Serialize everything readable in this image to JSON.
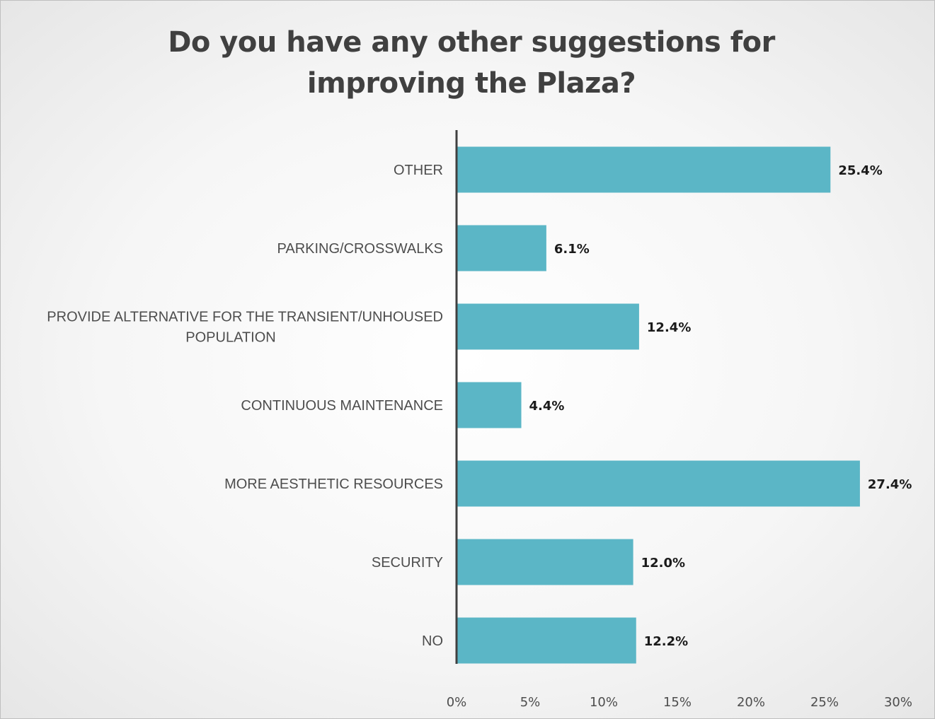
{
  "chart_data": {
    "type": "bar",
    "orientation": "horizontal",
    "title": "Do you have any other suggestions for improving the Plaza?",
    "categories": [
      "OTHER",
      "PARKING/CROSSWALKS",
      "PROVIDE ALTERNATIVE FOR THE TRANSIENT/UNHOUSED POPULATION",
      "CONTINUOUS MAINTENANCE",
      "MORE AESTHETIC RESOURCES",
      "SECURITY",
      "NO"
    ],
    "values": [
      25.4,
      6.1,
      12.4,
      4.4,
      27.4,
      12.0,
      12.2
    ],
    "data_labels": [
      "25.4%",
      "6.1%",
      "12.4%",
      "4.4%",
      "27.4%",
      "12.0%",
      "12.2%"
    ],
    "xlim": [
      0,
      30
    ],
    "xticks": [
      0,
      5,
      10,
      15,
      20,
      25,
      30
    ],
    "xtick_labels": [
      "0%",
      "5%",
      "10%",
      "15%",
      "20%",
      "25%",
      "30%"
    ],
    "bar_color": "#5bb6c6",
    "grid": false,
    "legend": "none"
  }
}
